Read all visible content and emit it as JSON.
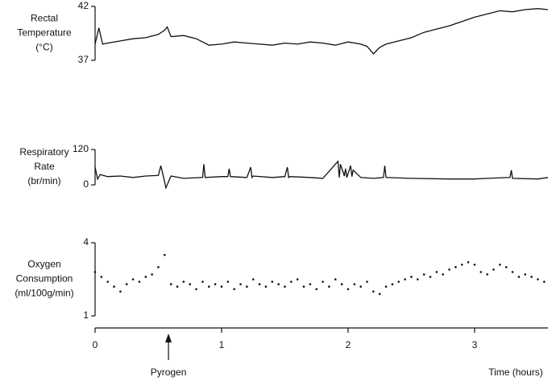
{
  "chart_data": [
    {
      "type": "line",
      "ylabel": [
        "Rectal",
        "Temperature",
        "(°C)"
      ],
      "color": "#111111",
      "xlim": [
        0,
        3.58
      ],
      "ylim": [
        37,
        42
      ],
      "yticks": [
        37,
        42
      ],
      "x": [
        0,
        0.03,
        0.06,
        0.1,
        0.2,
        0.3,
        0.4,
        0.5,
        0.55,
        0.57,
        0.6,
        0.7,
        0.8,
        0.85,
        0.9,
        1.0,
        1.1,
        1.2,
        1.3,
        1.4,
        1.5,
        1.6,
        1.7,
        1.8,
        1.9,
        2.0,
        2.1,
        2.15,
        2.2,
        2.25,
        2.3,
        2.4,
        2.5,
        2.6,
        2.7,
        2.8,
        2.9,
        3.0,
        3.1,
        3.2,
        3.3,
        3.4,
        3.5,
        3.58
      ],
      "values": [
        38.5,
        40,
        38.5,
        38.6,
        38.8,
        39.0,
        39.1,
        39.4,
        39.8,
        40.1,
        39.2,
        39.3,
        39.0,
        38.7,
        38.4,
        38.5,
        38.7,
        38.6,
        38.5,
        38.4,
        38.6,
        38.5,
        38.7,
        38.6,
        38.4,
        38.7,
        38.5,
        38.3,
        37.6,
        38.2,
        38.5,
        38.8,
        39.1,
        39.6,
        39.9,
        40.2,
        40.6,
        41.0,
        41.3,
        41.6,
        41.5,
        41.7,
        41.8,
        41.7
      ]
    },
    {
      "type": "line",
      "ylabel": [
        "Respiratory",
        "Rate",
        "(br/min)"
      ],
      "color": "#111111",
      "xlim": [
        0,
        3.58
      ],
      "ylim": [
        0,
        120
      ],
      "yticks": [
        0,
        120
      ],
      "x": [
        0,
        0.02,
        0.04,
        0.1,
        0.2,
        0.3,
        0.4,
        0.5,
        0.52,
        0.54,
        0.56,
        0.6,
        0.7,
        0.85,
        0.86,
        0.87,
        1.0,
        1.05,
        1.06,
        1.07,
        1.2,
        1.23,
        1.24,
        1.25,
        1.4,
        1.5,
        1.52,
        1.53,
        1.54,
        1.7,
        1.8,
        1.92,
        1.93,
        1.94,
        1.97,
        1.98,
        1.99,
        2.02,
        2.03,
        2.04,
        2.1,
        2.2,
        2.28,
        2.29,
        2.3,
        2.5,
        2.8,
        3.0,
        3.1,
        3.28,
        3.29,
        3.3,
        3.5,
        3.58
      ],
      "values": [
        60,
        20,
        35,
        28,
        30,
        25,
        30,
        32,
        65,
        28,
        -10,
        30,
        22,
        25,
        70,
        25,
        28,
        28,
        55,
        28,
        25,
        60,
        25,
        30,
        25,
        28,
        60,
        25,
        28,
        25,
        22,
        80,
        25,
        70,
        30,
        55,
        25,
        65,
        28,
        50,
        25,
        22,
        25,
        65,
        25,
        22,
        20,
        20,
        22,
        25,
        50,
        22,
        20,
        25
      ]
    },
    {
      "type": "scatter",
      "ylabel": [
        "Oxygen",
        "Consumption",
        "(ml/100g/min)"
      ],
      "color": "#111111",
      "xlim": [
        0,
        3.58
      ],
      "ylim": [
        1,
        4
      ],
      "yticks": [
        1,
        4
      ],
      "xticks": [
        0,
        1,
        2,
        3
      ],
      "x_label": "Time (hours)",
      "annotation": {
        "text": "Pyrogen",
        "x": 0.58
      },
      "x": [
        0,
        0.05,
        0.1,
        0.15,
        0.2,
        0.25,
        0.3,
        0.35,
        0.4,
        0.45,
        0.5,
        0.55,
        0.6,
        0.65,
        0.7,
        0.75,
        0.8,
        0.85,
        0.9,
        0.95,
        1.0,
        1.05,
        1.1,
        1.15,
        1.2,
        1.25,
        1.3,
        1.35,
        1.4,
        1.45,
        1.5,
        1.55,
        1.6,
        1.65,
        1.7,
        1.75,
        1.8,
        1.85,
        1.9,
        1.95,
        2.0,
        2.05,
        2.1,
        2.15,
        2.2,
        2.25,
        2.3,
        2.35,
        2.4,
        2.45,
        2.5,
        2.55,
        2.6,
        2.65,
        2.7,
        2.75,
        2.8,
        2.85,
        2.9,
        2.95,
        3.0,
        3.05,
        3.1,
        3.15,
        3.2,
        3.25,
        3.3,
        3.35,
        3.4,
        3.45,
        3.5,
        3.55
      ],
      "values": [
        2.8,
        2.6,
        2.4,
        2.2,
        2.0,
        2.3,
        2.5,
        2.4,
        2.6,
        2.7,
        3.0,
        3.5,
        2.3,
        2.2,
        2.4,
        2.3,
        2.1,
        2.4,
        2.2,
        2.3,
        2.2,
        2.4,
        2.1,
        2.3,
        2.2,
        2.5,
        2.3,
        2.2,
        2.4,
        2.3,
        2.2,
        2.4,
        2.5,
        2.2,
        2.3,
        2.1,
        2.4,
        2.2,
        2.5,
        2.3,
        2.1,
        2.3,
        2.2,
        2.4,
        2.0,
        1.9,
        2.2,
        2.3,
        2.4,
        2.5,
        2.6,
        2.5,
        2.7,
        2.6,
        2.8,
        2.7,
        2.9,
        3.0,
        3.1,
        3.2,
        3.1,
        2.8,
        2.7,
        2.9,
        3.1,
        3.0,
        2.8,
        2.6,
        2.7,
        2.6,
        2.5,
        2.4
      ]
    }
  ]
}
